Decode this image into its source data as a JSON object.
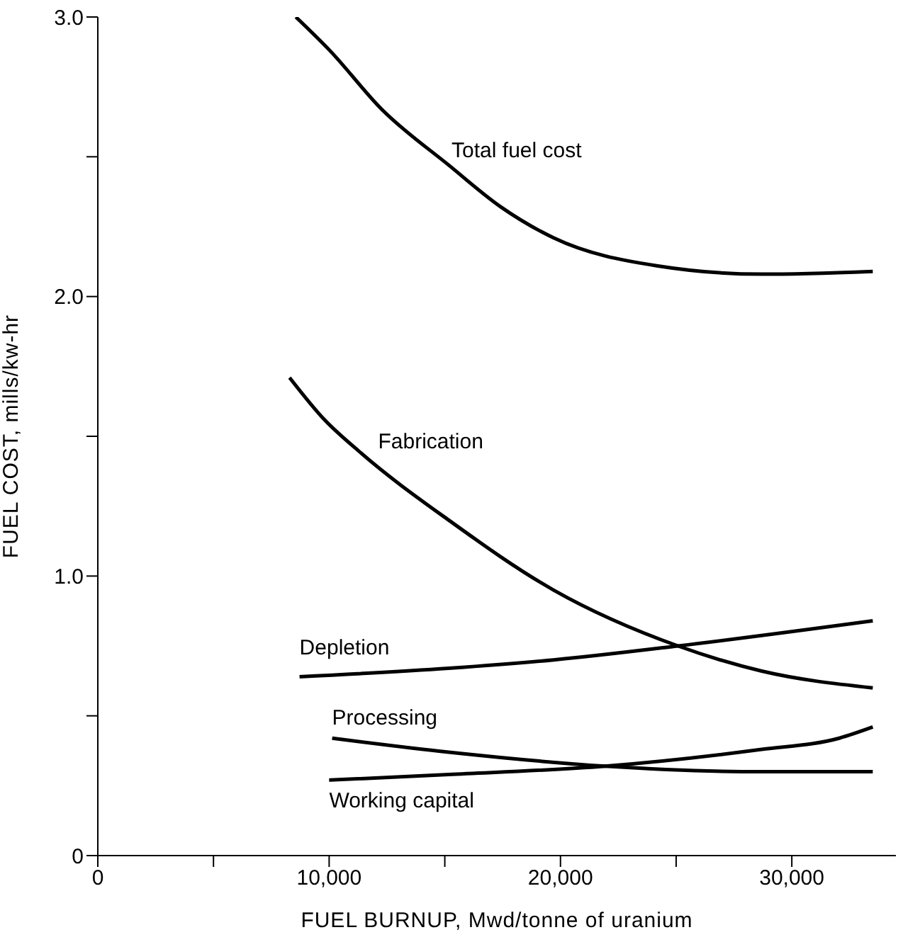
{
  "chart_data": {
    "type": "line",
    "xlabel": "FUEL BURNUP, Mwd/tonne of uranium",
    "ylabel": "FUEL COST, mills/kw-hr",
    "xlim": [
      0,
      34500
    ],
    "xticks": [
      0,
      {
        "value": 5000,
        "label": null
      },
      {
        "value": 10000,
        "label": "10,000"
      },
      {
        "value": 15000,
        "label": null
      },
      {
        "value": 20000,
        "label": "20,000"
      },
      {
        "value": 25000,
        "label": null
      },
      {
        "value": 30000,
        "label": "30,000"
      }
    ],
    "ylim": [
      0,
      3
    ],
    "yticks": [
      0,
      {
        "value": 0.5,
        "label": null
      },
      {
        "value": 1,
        "label": "1.0"
      },
      {
        "value": 1.5,
        "label": null
      },
      {
        "value": 2,
        "label": "2.0"
      },
      {
        "value": 2.5,
        "label": null
      },
      {
        "value": 3,
        "label": "3.0"
      }
    ],
    "marker": "none",
    "line_style": "solid",
    "series": [
      {
        "name": "Total fuel cost",
        "color": "#000000",
        "x": [
          8560,
          10030,
          12270,
          15170,
          17430,
          19700,
          24160,
          28700,
          33500
        ],
        "values": [
          3.0,
          2.88,
          2.67,
          2.47,
          2.32,
          2.21,
          2.11,
          2.08,
          2.09
        ]
      },
      {
        "name": "Fabrication",
        "color": "#000000",
        "x": [
          8290,
          9790,
          11380,
          15170,
          19700,
          25080,
          28700,
          33500
        ],
        "values": [
          1.71,
          1.56,
          1.44,
          1.2,
          0.95,
          0.75,
          0.66,
          0.6
        ]
      },
      {
        "name": "Depletion",
        "color": "#000000",
        "x": [
          8720,
          15170,
          19700,
          25080,
          33500
        ],
        "values": [
          0.64,
          0.67,
          0.7,
          0.75,
          0.84
        ]
      },
      {
        "name": "Processing",
        "color": "#000000",
        "x": [
          10130,
          15170,
          21930,
          28700,
          33500
        ],
        "values": [
          0.42,
          0.37,
          0.32,
          0.3,
          0.3
        ]
      },
      {
        "name": "Working capital",
        "color": "#000000",
        "x": [
          10000,
          15170,
          21930,
          28700,
          32050,
          33500
        ],
        "values": [
          0.27,
          0.29,
          0.32,
          0.38,
          0.42,
          0.46
        ]
      }
    ]
  }
}
